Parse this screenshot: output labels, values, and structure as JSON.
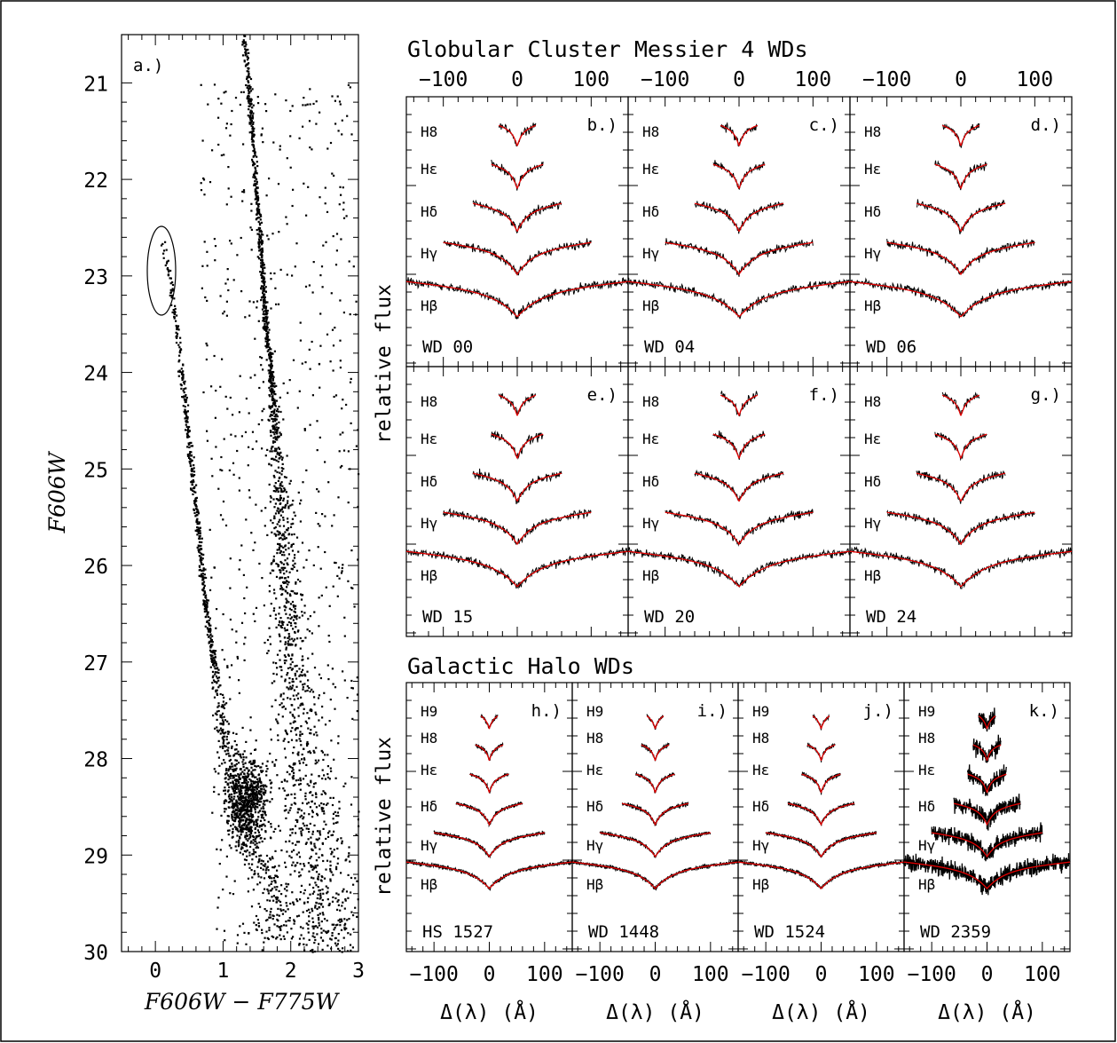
{
  "chart_data": [
    {
      "panel": "a.)",
      "type": "scatter",
      "xlabel": "F606W − F775W",
      "ylabel": "F606W",
      "xlim": [
        -0.5,
        3.0
      ],
      "ylim": [
        30,
        20.5
      ],
      "x_ticks": [
        "0",
        "1",
        "2",
        "3"
      ],
      "y_ticks": [
        "21",
        "22",
        "23",
        "24",
        "25",
        "26",
        "27",
        "28",
        "29",
        "30"
      ],
      "sequences": {
        "main_sequence": [
          [
            1.3,
            20.5
          ],
          [
            1.42,
            21.5
          ],
          [
            1.52,
            22.5
          ],
          [
            1.62,
            23.5
          ],
          [
            1.7,
            24.0
          ],
          [
            1.8,
            25.0
          ],
          [
            1.9,
            26.0
          ],
          [
            2.0,
            27.0
          ],
          [
            2.2,
            28.0
          ],
          [
            2.4,
            29.0
          ],
          [
            2.6,
            30.0
          ]
        ],
        "white_dwarf_sequence": [
          [
            0.1,
            22.6
          ],
          [
            0.2,
            23.0
          ],
          [
            0.3,
            23.5
          ],
          [
            0.45,
            24.5
          ],
          [
            0.6,
            25.5
          ],
          [
            0.75,
            26.5
          ],
          [
            0.95,
            27.5
          ],
          [
            1.2,
            28.5
          ],
          [
            1.5,
            29.0
          ],
          [
            1.8,
            29.5
          ]
        ]
      },
      "highlight_ellipse": {
        "center": [
          0.18,
          22.95
        ],
        "note": "ellipse around bright WDs"
      }
    },
    {
      "panels": [
        "b.)",
        "c.)",
        "d.)",
        "e.)",
        "f.)",
        "g.)"
      ],
      "type": "line",
      "title": "Globular Cluster Messier 4 WDs",
      "ylabel": "relative flux",
      "xlim": [
        -150,
        150
      ],
      "x_ticks": [
        "−100",
        "0",
        "100"
      ],
      "lines": [
        "H8",
        "Hε",
        "Hδ",
        "Hγ",
        "Hβ"
      ],
      "objects": [
        "WD 00",
        "WD 04",
        "WD 06",
        "WD 15",
        "WD 20",
        "WD 24"
      ],
      "line_half_widths": [
        25,
        35,
        60,
        100,
        150
      ],
      "series_colors": {
        "observed": "#000000",
        "model": "#e00000"
      }
    },
    {
      "panels": [
        "h.)",
        "i.)",
        "j.)",
        "k.)"
      ],
      "type": "line",
      "title": "Galactic Halo WDs",
      "ylabel": "relative flux",
      "xlabel": "Δ(λ) (Å)",
      "xlim": [
        -150,
        150
      ],
      "x_ticks": [
        "−100",
        "0",
        "100"
      ],
      "lines": [
        "H9",
        "H8",
        "Hε",
        "Hδ",
        "Hγ",
        "Hβ"
      ],
      "objects": [
        "HS 1527",
        "WD 1448",
        "WD 1524",
        "WD 2359"
      ],
      "line_half_widths": [
        15,
        25,
        35,
        60,
        100,
        150
      ]
    }
  ],
  "texts": {
    "panel_a_label": "a.)",
    "panel_a_xlabel": "F606W − F775W",
    "panel_a_ylabel": "F606W",
    "m4_title": "Globular Cluster Messier 4 WDs",
    "halo_title": "Galactic Halo WDs",
    "relative_flux": "relative flux",
    "delta_lambda": "Δ(λ) (Å)",
    "tick_m100": "−100",
    "tick_0": "0",
    "tick_100": "100"
  }
}
